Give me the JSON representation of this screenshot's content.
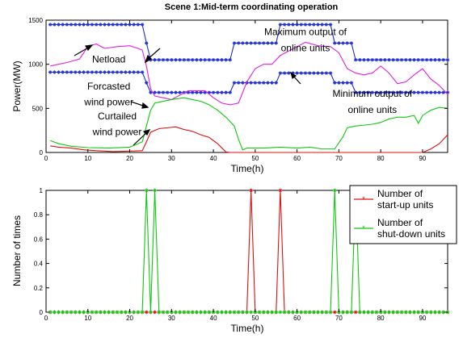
{
  "chart_data": [
    {
      "type": "line",
      "title": "Scene 1:Mid-term coordinating operation",
      "xlabel": "Time(h)",
      "ylabel": "Power(MW)",
      "xlim": [
        0,
        96
      ],
      "ylim": [
        0,
        1500
      ],
      "xticks": [
        "0",
        "10",
        "20",
        "30",
        "40",
        "50",
        "60",
        "70",
        "80",
        "90"
      ],
      "yticks": [
        "0",
        "500",
        "1000",
        "1500"
      ],
      "grid": false,
      "series": [
        {
          "color": "#1f2fd6",
          "marker": "*",
          "points": [
            [
              1,
              1450
            ],
            [
              23,
              1450
            ],
            [
              24,
              1240
            ],
            [
              25,
              1050
            ],
            [
              44,
              1050
            ],
            [
              45,
              1240
            ],
            [
              55,
              1240
            ],
            [
              56,
              1450
            ],
            [
              68,
              1450
            ],
            [
              69,
              1240
            ],
            [
              73,
              1240
            ],
            [
              74,
              1050
            ],
            [
              96,
              1050
            ]
          ]
        },
        {
          "color": "#1f2fd6",
          "marker": "*",
          "points": [
            [
              1,
              910
            ],
            [
              23,
              910
            ],
            [
              24,
              790
            ],
            [
              25,
              680
            ],
            [
              44,
              680
            ],
            [
              45,
              790
            ],
            [
              55,
              790
            ],
            [
              56,
              900
            ],
            [
              68,
              900
            ],
            [
              69,
              790
            ],
            [
              73,
              790
            ],
            [
              74,
              680
            ],
            [
              96,
              680
            ]
          ]
        },
        {
          "color": "#e020e0",
          "marker": "none",
          "points": [
            [
              1,
              980
            ],
            [
              5,
              1020
            ],
            [
              8,
              1060
            ],
            [
              10,
              1200
            ],
            [
              12,
              1230
            ],
            [
              14,
              1180
            ],
            [
              17,
              1200
            ],
            [
              20,
              1210
            ],
            [
              22,
              1180
            ],
            [
              23,
              1160
            ],
            [
              24,
              980
            ],
            [
              25,
              720
            ],
            [
              26,
              640
            ],
            [
              28,
              620
            ],
            [
              30,
              600
            ],
            [
              32,
              650
            ],
            [
              34,
              700
            ],
            [
              36,
              700
            ],
            [
              38,
              700
            ],
            [
              40,
              620
            ],
            [
              42,
              560
            ],
            [
              44,
              540
            ],
            [
              46,
              560
            ],
            [
              48,
              800
            ],
            [
              50,
              950
            ],
            [
              52,
              1000
            ],
            [
              54,
              1000
            ],
            [
              56,
              1100
            ],
            [
              58,
              1150
            ],
            [
              60,
              1200
            ],
            [
              62,
              1250
            ],
            [
              65,
              1210
            ],
            [
              68,
              1200
            ],
            [
              70,
              1130
            ],
            [
              72,
              950
            ],
            [
              74,
              900
            ],
            [
              76,
              880
            ],
            [
              78,
              900
            ],
            [
              80,
              980
            ],
            [
              82,
              900
            ],
            [
              84,
              780
            ],
            [
              86,
              800
            ],
            [
              88,
              880
            ],
            [
              90,
              950
            ],
            [
              92,
              830
            ],
            [
              94,
              760
            ],
            [
              96,
              660
            ]
          ]
        },
        {
          "color": "#10c810",
          "marker": "none",
          "points": [
            [
              1,
              135
            ],
            [
              3,
              100
            ],
            [
              6,
              70
            ],
            [
              10,
              55
            ],
            [
              15,
              50
            ],
            [
              20,
              60
            ],
            [
              22,
              100
            ],
            [
              23,
              120
            ],
            [
              24,
              300
            ],
            [
              25,
              480
            ],
            [
              26,
              560
            ],
            [
              28,
              580
            ],
            [
              30,
              600
            ],
            [
              33,
              620
            ],
            [
              35,
              600
            ],
            [
              37,
              580
            ],
            [
              39,
              540
            ],
            [
              41,
              480
            ],
            [
              43,
              400
            ],
            [
              45,
              300
            ],
            [
              46,
              150
            ],
            [
              47,
              30
            ],
            [
              48,
              50
            ],
            [
              52,
              50
            ],
            [
              56,
              60
            ],
            [
              60,
              50
            ],
            [
              63,
              60
            ],
            [
              66,
              40
            ],
            [
              69,
              40
            ],
            [
              71,
              180
            ],
            [
              72,
              280
            ],
            [
              74,
              300
            ],
            [
              76,
              310
            ],
            [
              78,
              320
            ],
            [
              80,
              340
            ],
            [
              82,
              380
            ],
            [
              84,
              400
            ],
            [
              86,
              400
            ],
            [
              88,
              420
            ],
            [
              89,
              330
            ],
            [
              90,
              420
            ],
            [
              92,
              480
            ],
            [
              94,
              510
            ],
            [
              96,
              500
            ]
          ]
        },
        {
          "color": "#e01010",
          "marker": "none",
          "points": [
            [
              1,
              75
            ],
            [
              3,
              60
            ],
            [
              6,
              50
            ],
            [
              9,
              30
            ],
            [
              12,
              20
            ],
            [
              16,
              10
            ],
            [
              20,
              15
            ],
            [
              23,
              20
            ],
            [
              24,
              120
            ],
            [
              25,
              230
            ],
            [
              27,
              270
            ],
            [
              29,
              280
            ],
            [
              31,
              290
            ],
            [
              33,
              260
            ],
            [
              35,
              240
            ],
            [
              37,
              200
            ],
            [
              39,
              170
            ],
            [
              41,
              100
            ],
            [
              43,
              5
            ],
            [
              44,
              0
            ],
            [
              88,
              0
            ],
            [
              90,
              0
            ],
            [
              92,
              40
            ],
            [
              94,
              100
            ],
            [
              96,
              200
            ]
          ]
        }
      ],
      "annotations": [
        {
          "text": "Maximum output of",
          "x": 62,
          "y": 1330
        },
        {
          "text": "online units",
          "x": 62,
          "y": 1150
        },
        {
          "text": "Netload",
          "x": 15,
          "y": 1020
        },
        {
          "text": "Minimum output of",
          "x": 78,
          "y": 630
        },
        {
          "text": "online units",
          "x": 78,
          "y": 450
        },
        {
          "text": "Forcasted",
          "x": 15,
          "y": 715
        },
        {
          "text": "wind power",
          "x": 15,
          "y": 535
        },
        {
          "text": "Curtailed",
          "x": 17,
          "y": 375
        },
        {
          "text": "wind power",
          "x": 17,
          "y": 195
        }
      ]
    },
    {
      "type": "line",
      "xlabel": "Time(h)",
      "ylabel": "Number of times",
      "xlim": [
        0,
        96
      ],
      "ylim": [
        0,
        1
      ],
      "xticks": [
        "0",
        "10",
        "20",
        "30",
        "40",
        "50",
        "60",
        "70",
        "80",
        "90"
      ],
      "yticks": [
        "0",
        "0.2",
        "0.4",
        "0.6",
        "0.8",
        "1"
      ],
      "grid": false,
      "legend_position": "top-right",
      "series": [
        {
          "name": "Number of start-up units",
          "color": "#e01010",
          "marker": "*",
          "x": [
            1,
            2,
            3,
            4,
            5,
            6,
            7,
            8,
            9,
            10,
            11,
            12,
            13,
            14,
            15,
            16,
            17,
            18,
            19,
            20,
            21,
            22,
            23,
            24,
            25,
            26,
            27,
            28,
            29,
            30,
            31,
            32,
            33,
            34,
            35,
            36,
            37,
            38,
            39,
            40,
            41,
            42,
            43,
            44,
            45,
            46,
            47,
            48,
            49,
            50,
            51,
            52,
            53,
            54,
            55,
            56,
            57,
            58,
            59,
            60,
            61,
            62,
            63,
            64,
            65,
            66,
            67,
            68,
            69,
            70,
            71,
            72,
            73,
            74,
            75,
            76,
            77,
            78,
            79,
            80,
            81,
            82,
            83,
            84,
            85,
            86,
            87,
            88,
            89,
            90,
            91,
            92,
            93,
            94,
            95,
            96
          ],
          "values": [
            0,
            0,
            0,
            0,
            0,
            0,
            0,
            0,
            0,
            0,
            0,
            0,
            0,
            0,
            0,
            0,
            0,
            0,
            0,
            0,
            0,
            0,
            0,
            0,
            0,
            0,
            0,
            0,
            0,
            0,
            0,
            0,
            0,
            0,
            0,
            0,
            0,
            0,
            0,
            0,
            0,
            0,
            0,
            0,
            0,
            0,
            0,
            0,
            1,
            0,
            0,
            0,
            0,
            0,
            0,
            1,
            0,
            0,
            0,
            0,
            0,
            0,
            0,
            0,
            0,
            0,
            0,
            0,
            0,
            0,
            0,
            0,
            0,
            0,
            0,
            0,
            0,
            0,
            0,
            0,
            0,
            0,
            0,
            0,
            0,
            0,
            0,
            0,
            0,
            0,
            0,
            0,
            0,
            0,
            0,
            0
          ]
        },
        {
          "name": "Number of shut-down units",
          "color": "#10c810",
          "marker": "*",
          "x": [
            1,
            2,
            3,
            4,
            5,
            6,
            7,
            8,
            9,
            10,
            11,
            12,
            13,
            14,
            15,
            16,
            17,
            18,
            19,
            20,
            21,
            22,
            23,
            24,
            25,
            26,
            27,
            28,
            29,
            30,
            31,
            32,
            33,
            34,
            35,
            36,
            37,
            38,
            39,
            40,
            41,
            42,
            43,
            44,
            45,
            46,
            47,
            48,
            49,
            50,
            51,
            52,
            53,
            54,
            55,
            56,
            57,
            58,
            59,
            60,
            61,
            62,
            63,
            64,
            65,
            66,
            67,
            68,
            69,
            70,
            71,
            72,
            73,
            74,
            75,
            76,
            77,
            78,
            79,
            80,
            81,
            82,
            83,
            84,
            85,
            86,
            87,
            88,
            89,
            90,
            91,
            92,
            93,
            94,
            95,
            96
          ],
          "values": [
            0,
            0,
            0,
            0,
            0,
            0,
            0,
            0,
            0,
            0,
            0,
            0,
            0,
            0,
            0,
            0,
            0,
            0,
            0,
            0,
            0,
            0,
            0,
            1,
            0,
            1,
            0,
            0,
            0,
            0,
            0,
            0,
            0,
            0,
            0,
            0,
            0,
            0,
            0,
            0,
            0,
            0,
            0,
            0,
            0,
            0,
            0,
            0,
            0,
            0,
            0,
            0,
            0,
            0,
            0,
            0,
            0,
            0,
            0,
            0,
            0,
            0,
            0,
            0,
            0,
            0,
            0,
            0,
            1,
            0,
            0,
            0,
            0,
            1,
            0,
            0,
            0,
            0,
            0,
            0,
            0,
            0,
            0,
            0,
            0,
            0,
            0,
            0,
            0,
            0,
            0,
            0,
            0,
            0,
            0,
            0
          ]
        }
      ]
    }
  ],
  "legend": {
    "startup_line1": "Number of",
    "startup_line2": "start-up units",
    "shutdown_line1": "Number of",
    "shutdown_line2": "shut-down units"
  }
}
